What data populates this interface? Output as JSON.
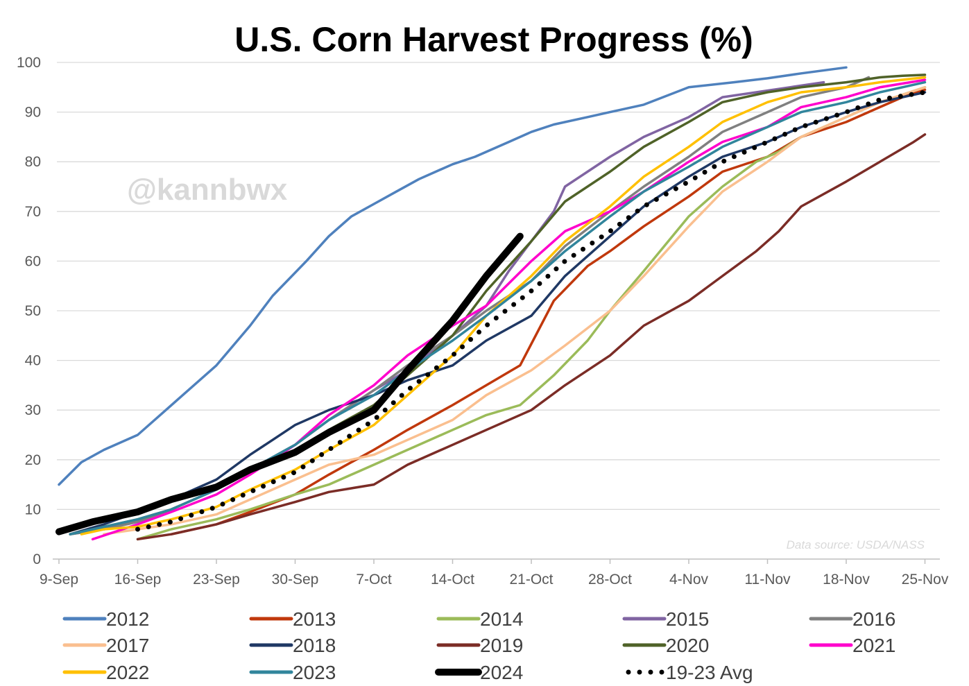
{
  "chart_data": {
    "type": "line",
    "title": "U.S. Corn Harvest Progress (%)",
    "watermark": "@kannbwx",
    "source_note": "Data source: USDA/NASS",
    "xlabel": "",
    "ylabel": "",
    "x_range_days": [
      0,
      77
    ],
    "ylim": [
      0,
      100
    ],
    "y_ticks": [
      0,
      10,
      20,
      30,
      40,
      50,
      60,
      70,
      80,
      90,
      100
    ],
    "x_ticks": [
      {
        "day": 0,
        "label": "9-Sep"
      },
      {
        "day": 7,
        "label": "16-Sep"
      },
      {
        "day": 14,
        "label": "23-Sep"
      },
      {
        "day": 21,
        "label": "30-Sep"
      },
      {
        "day": 28,
        "label": "7-Oct"
      },
      {
        "day": 35,
        "label": "14-Oct"
      },
      {
        "day": 42,
        "label": "21-Oct"
      },
      {
        "day": 49,
        "label": "28-Oct"
      },
      {
        "day": 56,
        "label": "4-Nov"
      },
      {
        "day": 63,
        "label": "11-Nov"
      },
      {
        "day": 70,
        "label": "18-Nov"
      },
      {
        "day": 77,
        "label": "25-Nov"
      }
    ],
    "grid": "horizontal",
    "legend_position": "bottom",
    "series": [
      {
        "name": "2012",
        "color": "#4f81bd",
        "style": "solid",
        "x": [
          0,
          2,
          4,
          7,
          9,
          11,
          14,
          17,
          19,
          22,
          24,
          26,
          28,
          30,
          32,
          35,
          37,
          40,
          42,
          44,
          47,
          49,
          52,
          56,
          60,
          63,
          66,
          70
        ],
        "y": [
          15,
          19.5,
          22,
          25,
          29,
          33,
          39,
          47,
          53,
          60,
          65,
          69,
          71.5,
          74,
          76.5,
          79.5,
          81,
          84,
          86,
          87.5,
          89,
          90,
          91.5,
          95,
          96,
          96.8,
          97.8,
          99
        ]
      },
      {
        "name": "2013",
        "color": "#c0380c",
        "style": "solid",
        "x": [
          10,
          14,
          17,
          21,
          24,
          28,
          31,
          35,
          38,
          41,
          44,
          47,
          49,
          52,
          56,
          59,
          63,
          66,
          70,
          73,
          75,
          77
        ],
        "y": [
          5,
          7,
          9.5,
          13,
          17,
          22,
          26,
          31,
          35,
          39,
          52,
          59,
          62,
          67,
          73,
          78,
          81,
          85,
          88,
          91,
          93,
          94.5
        ]
      },
      {
        "name": "2014",
        "color": "#9bbb59",
        "style": "solid",
        "x": [
          7,
          10,
          14,
          17,
          21,
          24,
          28,
          31,
          35,
          38,
          41,
          44,
          47,
          49,
          52,
          56,
          59,
          62,
          64,
          66,
          70,
          73,
          75,
          77
        ],
        "y": [
          4,
          6,
          8,
          10,
          13,
          15,
          19,
          22,
          26,
          29,
          31,
          37,
          44,
          50,
          58,
          69,
          75,
          80,
          82,
          85,
          89,
          92,
          93.5,
          95
        ]
      },
      {
        "name": "2015",
        "color": "#8064a2",
        "style": "solid",
        "x": [
          1,
          4,
          7,
          10,
          14,
          17,
          21,
          24,
          28,
          31,
          35,
          38,
          40,
          42,
          44,
          45,
          47,
          49,
          52,
          56,
          59,
          62,
          65,
          68
        ],
        "y": [
          5,
          6,
          7.5,
          10,
          14,
          18,
          23,
          28,
          34,
          38,
          45,
          51,
          58,
          64,
          70,
          75,
          78,
          81,
          85,
          89,
          93,
          94,
          95,
          96
        ]
      },
      {
        "name": "2016",
        "color": "#808080",
        "style": "solid",
        "x": [
          1,
          4,
          7,
          10,
          14,
          17,
          21,
          24,
          28,
          31,
          35,
          38,
          42,
          45,
          49,
          52,
          56,
          59,
          63,
          66,
          70,
          72
        ],
        "y": [
          5,
          6,
          7.5,
          10,
          14,
          18,
          23,
          28,
          34,
          39,
          45,
          50,
          56,
          63,
          70,
          75,
          81,
          86,
          90,
          93,
          95,
          97
        ]
      },
      {
        "name": "2017",
        "color": "#fabf8f",
        "style": "solid",
        "x": [
          4,
          7,
          10,
          14,
          17,
          21,
          24,
          28,
          31,
          35,
          38,
          42,
          45,
          49,
          52,
          56,
          59,
          63,
          66,
          70,
          73,
          77
        ],
        "y": [
          5,
          6,
          7,
          9,
          12,
          16,
          19,
          21,
          24,
          28,
          33,
          38,
          43,
          50,
          57,
          67,
          74,
          80,
          85,
          89,
          92,
          95
        ]
      },
      {
        "name": "2018",
        "color": "#1f3864",
        "style": "solid",
        "x": [
          1,
          4,
          7,
          10,
          14,
          17,
          19,
          21,
          24,
          28,
          31,
          35,
          38,
          42,
          45,
          49,
          52,
          56,
          59,
          63,
          66,
          70,
          73,
          77
        ],
        "y": [
          5,
          7,
          9.5,
          12,
          16,
          21,
          24,
          27,
          30,
          33,
          36,
          39,
          44,
          49,
          57,
          65,
          71,
          77,
          81,
          84,
          87,
          90,
          92,
          94
        ]
      },
      {
        "name": "2019",
        "color": "#7b2c26",
        "style": "solid",
        "x": [
          7,
          10,
          14,
          17,
          21,
          24,
          28,
          31,
          35,
          38,
          42,
          45,
          49,
          52,
          56,
          59,
          62,
          64,
          66,
          70,
          73,
          76,
          77
        ],
        "y": [
          4,
          5,
          7,
          9,
          11.5,
          13.5,
          15,
          19,
          23,
          26,
          30,
          35,
          41,
          47,
          52,
          57,
          62,
          66,
          71,
          76,
          80,
          84,
          85.5
        ]
      },
      {
        "name": "2020",
        "color": "#4f6228",
        "style": "solid",
        "x": [
          1,
          4,
          7,
          10,
          14,
          17,
          21,
          24,
          28,
          31,
          35,
          38,
          42,
          45,
          49,
          52,
          56,
          59,
          61,
          63,
          66,
          70,
          73,
          75,
          77
        ],
        "y": [
          5,
          6.5,
          8,
          10,
          14,
          18,
          22,
          26,
          31,
          37,
          45,
          54,
          64,
          72,
          78,
          83,
          88,
          92,
          93,
          94,
          95,
          96,
          97,
          97.3,
          97.5
        ]
      },
      {
        "name": "2021",
        "color": "#ff00cc",
        "style": "solid",
        "x": [
          3,
          7,
          10,
          14,
          17,
          21,
          24,
          28,
          31,
          35,
          38,
          42,
          45,
          49,
          52,
          56,
          59,
          63,
          66,
          70,
          73,
          77
        ],
        "y": [
          4,
          7,
          9.5,
          13,
          17,
          23,
          29,
          35,
          41,
          47,
          51,
          60,
          66,
          70,
          74,
          80,
          84,
          87,
          91,
          93,
          95,
          96.5
        ]
      },
      {
        "name": "2022",
        "color": "#ffc000",
        "style": "solid",
        "x": [
          2,
          4,
          7,
          10,
          14,
          17,
          21,
          24,
          28,
          31,
          35,
          38,
          42,
          45,
          49,
          52,
          56,
          59,
          63,
          66,
          70,
          73,
          77
        ],
        "y": [
          5,
          6,
          6.5,
          8,
          10.5,
          14,
          18,
          22,
          27,
          33,
          41,
          49,
          57,
          64,
          71,
          77,
          83,
          88,
          92,
          94,
          95,
          96,
          97
        ]
      },
      {
        "name": "2023",
        "color": "#31859c",
        "style": "solid",
        "x": [
          1,
          4,
          7,
          10,
          14,
          17,
          21,
          24,
          28,
          31,
          35,
          38,
          42,
          45,
          49,
          52,
          56,
          59,
          63,
          66,
          70,
          73,
          77
        ],
        "y": [
          5,
          6.5,
          8,
          10,
          14,
          18,
          23,
          28,
          33,
          38,
          44,
          49,
          56,
          62,
          69,
          74,
          79,
          83,
          87,
          90,
          92,
          94,
          96
        ]
      },
      {
        "name": "2024",
        "color": "#000000",
        "style": "solid",
        "x": [
          0,
          3,
          7,
          10,
          14,
          17,
          21,
          24,
          28,
          31,
          35,
          38,
          41
        ],
        "y": [
          5.5,
          7.5,
          9.5,
          12,
          14.5,
          18,
          21.5,
          25.5,
          30,
          38,
          48,
          57,
          65
        ]
      },
      {
        "name": "19-23 Avg",
        "color": "#000000",
        "style": "dotted",
        "x": [
          7,
          10,
          14,
          17,
          21,
          24,
          28,
          31,
          35,
          38,
          42,
          45,
          49,
          52,
          56,
          59,
          63,
          66,
          70,
          73,
          77
        ],
        "y": [
          6,
          7.5,
          10.5,
          13.5,
          17.5,
          22,
          28,
          34,
          41,
          47,
          54,
          60,
          66,
          71,
          76,
          80,
          84,
          87,
          90,
          92.5,
          94
        ]
      }
    ]
  }
}
